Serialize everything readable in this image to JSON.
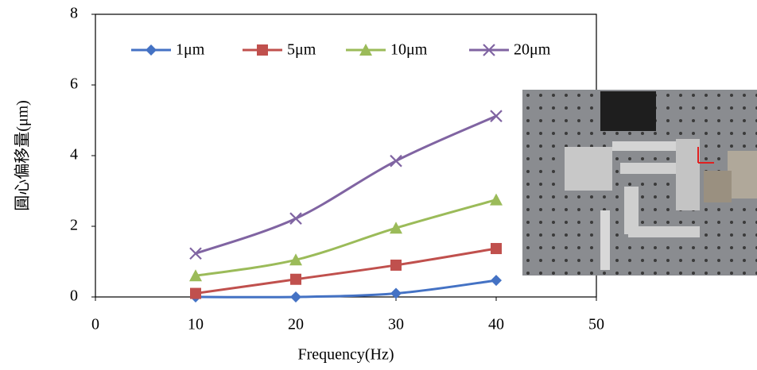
{
  "chart_data": {
    "type": "line",
    "x_label": "Frequency(Hz)",
    "y_label": "圓心偏移量(μm)",
    "x": [
      10,
      20,
      30,
      40
    ],
    "series": [
      {
        "name": "1μm",
        "color": "#4472c4",
        "marker": "diamond",
        "values": [
          0.0,
          0.0,
          0.1,
          0.47
        ]
      },
      {
        "name": "5μm",
        "color": "#c0504d",
        "marker": "square",
        "values": [
          0.1,
          0.5,
          0.9,
          1.37
        ]
      },
      {
        "name": "10μm",
        "color": "#9bbb59",
        "marker": "triangle",
        "values": [
          0.6,
          1.05,
          1.95,
          2.75
        ]
      },
      {
        "name": "20μm",
        "color": "#8064a2",
        "marker": "x",
        "values": [
          1.23,
          2.22,
          3.85,
          5.12
        ]
      }
    ],
    "xlim": [
      0,
      50
    ],
    "xticks": [
      0,
      10,
      20,
      30,
      40,
      50
    ],
    "ylim": [
      0,
      8
    ],
    "yticks": [
      0,
      2,
      4,
      6,
      8
    ],
    "smooth": true
  }
}
